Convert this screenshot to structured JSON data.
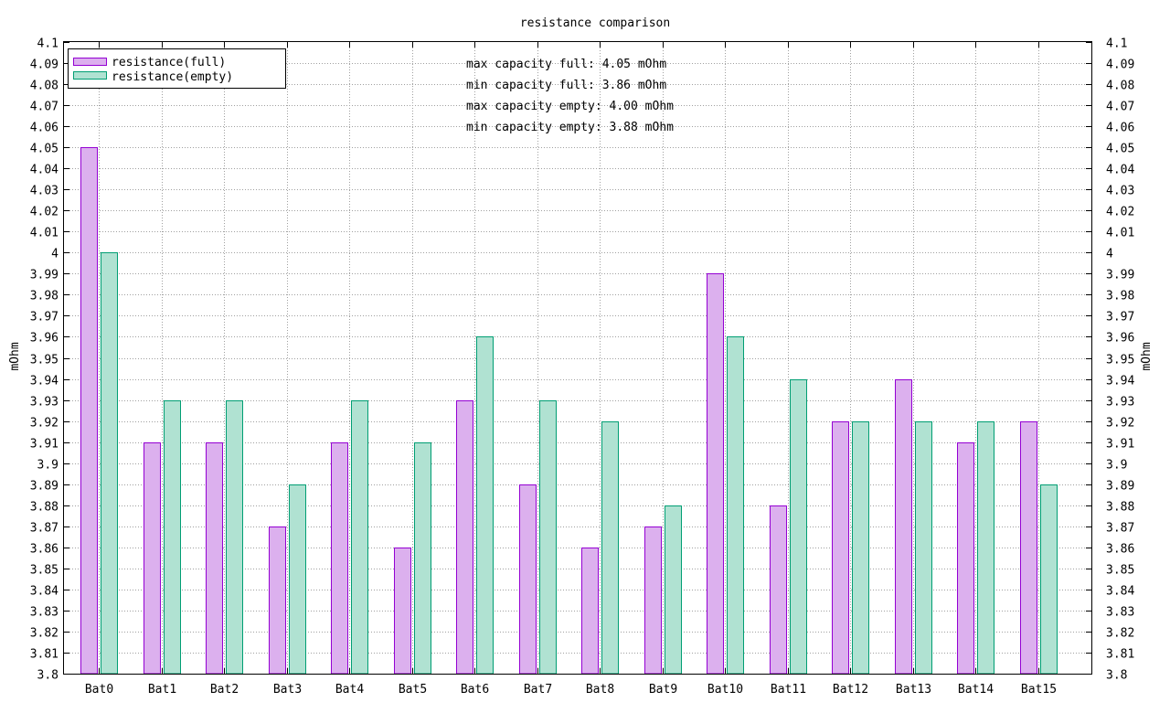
{
  "chart_data": {
    "type": "bar",
    "title": "resistance comparison",
    "ylabel": "mOhm",
    "y2label": "mOhm",
    "xlabel": "",
    "ylim": [
      3.8,
      4.1
    ],
    "ytick_step": 0.01,
    "yticks": [
      "3.8",
      "3.81",
      "3.82",
      "3.83",
      "3.84",
      "3.85",
      "3.86",
      "3.87",
      "3.88",
      "3.89",
      "3.9",
      "3.91",
      "3.92",
      "3.93",
      "3.94",
      "3.95",
      "3.96",
      "3.97",
      "3.98",
      "3.99",
      "4",
      "4.01",
      "4.02",
      "4.03",
      "4.04",
      "4.05",
      "4.06",
      "4.07",
      "4.08",
      "4.09",
      "4.1"
    ],
    "categories": [
      "Bat0",
      "Bat1",
      "Bat2",
      "Bat3",
      "Bat4",
      "Bat5",
      "Bat6",
      "Bat7",
      "Bat8",
      "Bat9",
      "Bat10",
      "Bat11",
      "Bat12",
      "Bat13",
      "Bat14",
      "Bat15"
    ],
    "series": [
      {
        "name": "resistance(full)",
        "fill": "#dcb0ee",
        "stroke": "#9400d3",
        "values": [
          4.05,
          3.91,
          3.91,
          3.87,
          3.91,
          3.86,
          3.93,
          3.89,
          3.86,
          3.87,
          3.99,
          3.88,
          3.92,
          3.94,
          3.91,
          3.92
        ]
      },
      {
        "name": "resistance(empty)",
        "fill": "#b0e2d2",
        "stroke": "#009e73",
        "values": [
          4.0,
          3.93,
          3.93,
          3.89,
          3.93,
          3.91,
          3.96,
          3.93,
          3.92,
          3.88,
          3.96,
          3.94,
          3.92,
          3.92,
          3.92,
          3.89
        ]
      }
    ],
    "legend": {
      "position": "top-left"
    },
    "grid": true,
    "annotations": [
      "max capacity full: 4.05 mOhm",
      "min capacity full: 3.86 mOhm",
      "max capacity empty: 4.00 mOhm",
      "min capacity empty: 3.88 mOhm"
    ]
  }
}
